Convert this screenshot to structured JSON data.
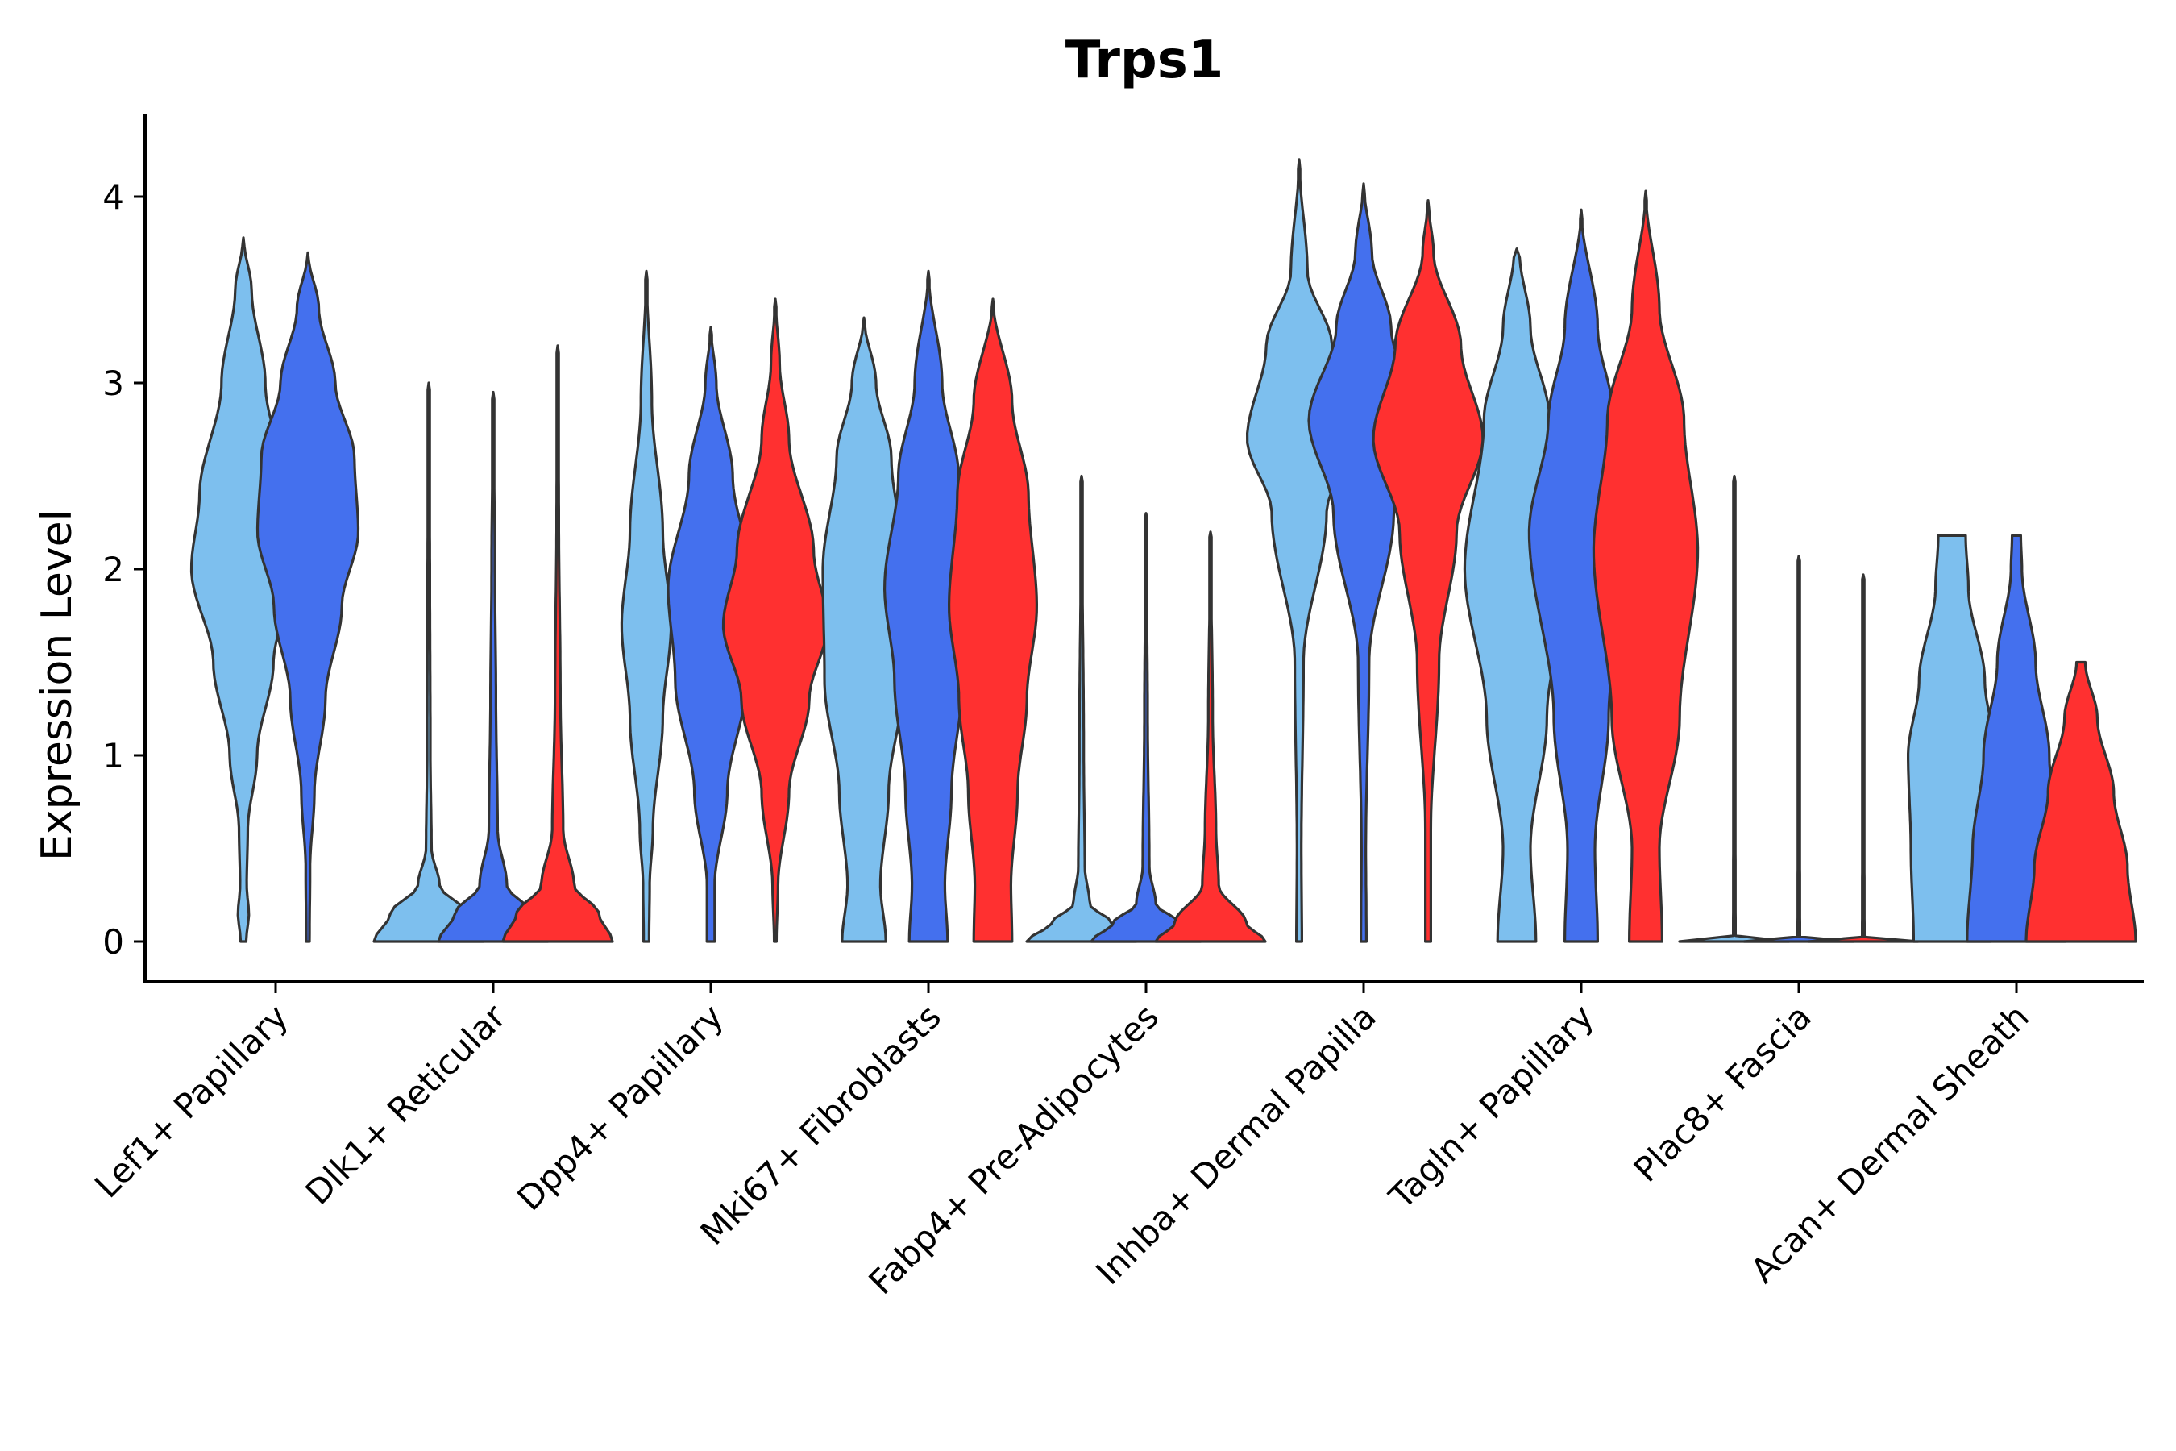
{
  "chart_data": {
    "type": "violin",
    "title": "Trps1",
    "xlabel": "",
    "ylabel": "Expression Level",
    "ylim": [
      -0.2,
      4.45
    ],
    "yticks": [
      "0",
      "1",
      "2",
      "3",
      "4"
    ],
    "categories": [
      "Lef1+ Papillary",
      "Dlk1+ Reticular",
      "Dpp4+ Papillary",
      "Mki67+ Fibroblasts",
      "Fabp4+ Pre-Adipocytes",
      "Inhba+ Dermal Papilla",
      "Tagln+ Papillary",
      "Plac8+ Fascia",
      "Acan+ Dermal Sheath"
    ],
    "series_colors": [
      "#7dbfee",
      "#4470ee",
      "#ff3030"
    ],
    "groups": [
      {
        "category": "Lef1+ Papillary",
        "violins": [
          {
            "series": 0,
            "max": 3.78,
            "min": 0,
            "profile": [
              [
                0,
                0.05
              ],
              [
                0.15,
                0.1
              ],
              [
                0.3,
                0.06
              ],
              [
                0.6,
                0.08
              ],
              [
                1,
                0.25
              ],
              [
                1.5,
                0.55
              ],
              [
                2,
                0.95
              ],
              [
                2.4,
                0.8
              ],
              [
                3,
                0.4
              ],
              [
                3.5,
                0.15
              ],
              [
                3.78,
                0
              ]
            ]
          },
          {
            "series": 1,
            "max": 3.7,
            "min": 0,
            "profile": [
              [
                0,
                0.03
              ],
              [
                0.4,
                0.04
              ],
              [
                0.8,
                0.12
              ],
              [
                1.3,
                0.32
              ],
              [
                1.8,
                0.62
              ],
              [
                2.2,
                0.92
              ],
              [
                2.6,
                0.85
              ],
              [
                3,
                0.5
              ],
              [
                3.4,
                0.2
              ],
              [
                3.7,
                0
              ]
            ]
          }
        ]
      },
      {
        "category": "Dlk1+ Reticular",
        "violins": [
          {
            "series": 0,
            "max": 3.0,
            "min": 0,
            "profile": [
              [
                0,
                1
              ],
              [
                0.15,
                0.7
              ],
              [
                0.3,
                0.2
              ],
              [
                0.5,
                0.05
              ],
              [
                1,
                0.03
              ],
              [
                2,
                0.02
              ],
              [
                3,
                0
              ]
            ]
          },
          {
            "series": 1,
            "max": 2.95,
            "min": 0,
            "profile": [
              [
                0,
                1
              ],
              [
                0.15,
                0.7
              ],
              [
                0.3,
                0.25
              ],
              [
                0.6,
                0.08
              ],
              [
                1.3,
                0.05
              ],
              [
                2,
                0.03
              ],
              [
                2.95,
                0
              ]
            ]
          },
          {
            "series": 2,
            "max": 3.2,
            "min": 0,
            "profile": [
              [
                0,
                1
              ],
              [
                0.15,
                0.75
              ],
              [
                0.3,
                0.3
              ],
              [
                0.6,
                0.1
              ],
              [
                1.3,
                0.05
              ],
              [
                2.3,
                0.02
              ],
              [
                3.2,
                0
              ]
            ]
          }
        ]
      },
      {
        "category": "Dpp4+ Papillary",
        "violins": [
          {
            "series": 0,
            "max": 3.6,
            "min": 0,
            "profile": [
              [
                0,
                0.05
              ],
              [
                0.3,
                0.06
              ],
              [
                0.6,
                0.12
              ],
              [
                1.2,
                0.3
              ],
              [
                1.7,
                0.45
              ],
              [
                2.2,
                0.3
              ],
              [
                2.9,
                0.1
              ],
              [
                3.6,
                0
              ]
            ]
          },
          {
            "series": 1,
            "max": 3.3,
            "min": 0,
            "profile": [
              [
                0,
                0.07
              ],
              [
                0.3,
                0.07
              ],
              [
                0.8,
                0.3
              ],
              [
                1.4,
                0.65
              ],
              [
                1.9,
                0.78
              ],
              [
                2.5,
                0.4
              ],
              [
                3,
                0.1
              ],
              [
                3.3,
                0
              ]
            ]
          },
          {
            "series": 2,
            "max": 3.45,
            "min": 0,
            "profile": [
              [
                0,
                0.02
              ],
              [
                0.3,
                0.05
              ],
              [
                0.8,
                0.25
              ],
              [
                1.3,
                0.62
              ],
              [
                1.7,
                0.95
              ],
              [
                2.1,
                0.7
              ],
              [
                2.7,
                0.25
              ],
              [
                3.1,
                0.08
              ],
              [
                3.45,
                0
              ]
            ]
          }
        ]
      },
      {
        "category": "Mki67+ Fibroblasts",
        "violins": [
          {
            "series": 0,
            "max": 3.35,
            "min": 0,
            "profile": [
              [
                0,
                0.4
              ],
              [
                0.3,
                0.3
              ],
              [
                0.8,
                0.45
              ],
              [
                1.4,
                0.72
              ],
              [
                2,
                0.75
              ],
              [
                2.6,
                0.5
              ],
              [
                3,
                0.22
              ],
              [
                3.35,
                0
              ]
            ]
          },
          {
            "series": 1,
            "max": 3.6,
            "min": 0,
            "profile": [
              [
                0,
                0.35
              ],
              [
                0.3,
                0.3
              ],
              [
                0.8,
                0.42
              ],
              [
                1.4,
                0.62
              ],
              [
                1.9,
                0.8
              ],
              [
                2.5,
                0.55
              ],
              [
                3,
                0.25
              ],
              [
                3.6,
                0
              ]
            ]
          },
          {
            "series": 2,
            "max": 3.45,
            "min": 0,
            "profile": [
              [
                0,
                0.35
              ],
              [
                0.3,
                0.33
              ],
              [
                0.8,
                0.45
              ],
              [
                1.3,
                0.62
              ],
              [
                1.8,
                0.8
              ],
              [
                2.4,
                0.65
              ],
              [
                2.9,
                0.35
              ],
              [
                3.45,
                0
              ]
            ]
          }
        ]
      },
      {
        "category": "Fabp4+ Pre-Adipocytes",
        "violins": [
          {
            "series": 0,
            "max": 2.5,
            "min": 0,
            "profile": [
              [
                0,
                1
              ],
              [
                0.1,
                0.55
              ],
              [
                0.2,
                0.15
              ],
              [
                0.4,
                0.06
              ],
              [
                1,
                0.04
              ],
              [
                2.5,
                0
              ]
            ]
          },
          {
            "series": 1,
            "max": 2.3,
            "min": 0,
            "profile": [
              [
                0,
                1
              ],
              [
                0.1,
                0.6
              ],
              [
                0.2,
                0.18
              ],
              [
                0.4,
                0.06
              ],
              [
                1.2,
                0.03
              ],
              [
                2.3,
                0
              ]
            ]
          },
          {
            "series": 2,
            "max": 2.2,
            "min": 0,
            "profile": [
              [
                0,
                1
              ],
              [
                0.1,
                0.65
              ],
              [
                0.3,
                0.15
              ],
              [
                0.6,
                0.1
              ],
              [
                1.2,
                0.04
              ],
              [
                2.2,
                0
              ]
            ]
          }
        ]
      },
      {
        "category": "Inhba+ Dermal Papilla",
        "violins": [
          {
            "series": 0,
            "max": 4.2,
            "min": 0,
            "profile": [
              [
                0,
                0.05
              ],
              [
                0.5,
                0.04
              ],
              [
                1.5,
                0.08
              ],
              [
                2.3,
                0.5
              ],
              [
                2.7,
                0.95
              ],
              [
                3.2,
                0.6
              ],
              [
                3.6,
                0.15
              ],
              [
                4.2,
                0
              ]
            ]
          },
          {
            "series": 1,
            "max": 4.07,
            "min": 0,
            "profile": [
              [
                0,
                0.05
              ],
              [
                0.5,
                0.04
              ],
              [
                1.5,
                0.1
              ],
              [
                2.3,
                0.55
              ],
              [
                2.8,
                1
              ],
              [
                3.3,
                0.5
              ],
              [
                3.7,
                0.15
              ],
              [
                4.07,
                0
              ]
            ]
          },
          {
            "series": 2,
            "max": 3.98,
            "min": 0,
            "profile": [
              [
                0,
                0.05
              ],
              [
                0.6,
                0.05
              ],
              [
                1.5,
                0.2
              ],
              [
                2.2,
                0.52
              ],
              [
                2.7,
                1
              ],
              [
                3.2,
                0.6
              ],
              [
                3.7,
                0.1
              ],
              [
                3.98,
                0
              ]
            ]
          }
        ]
      },
      {
        "category": "Tagln+ Papillary",
        "violins": [
          {
            "series": 0,
            "max": 3.72,
            "min": 0,
            "profile": [
              [
                0,
                0.35
              ],
              [
                0.5,
                0.25
              ],
              [
                1.2,
                0.55
              ],
              [
                2,
                0.95
              ],
              [
                2.8,
                0.6
              ],
              [
                3.3,
                0.25
              ],
              [
                3.7,
                0.05
              ],
              [
                3.72,
                0
              ]
            ]
          },
          {
            "series": 1,
            "max": 3.93,
            "min": 0,
            "profile": [
              [
                0,
                0.3
              ],
              [
                0.5,
                0.25
              ],
              [
                1.2,
                0.5
              ],
              [
                2.2,
                0.95
              ],
              [
                2.8,
                0.6
              ],
              [
                3.3,
                0.3
              ],
              [
                3.93,
                0
              ]
            ]
          },
          {
            "series": 2,
            "max": 4.03,
            "min": 0,
            "profile": [
              [
                0,
                0.3
              ],
              [
                0.5,
                0.25
              ],
              [
                1.2,
                0.62
              ],
              [
                2.1,
                0.95
              ],
              [
                2.8,
                0.7
              ],
              [
                3.4,
                0.25
              ],
              [
                4.03,
                0
              ]
            ]
          }
        ]
      },
      {
        "category": "Plac8+ Fascia",
        "violins": [
          {
            "series": 0,
            "max": 2.5,
            "min": 0,
            "profile": [
              [
                0,
                1
              ],
              [
                0.02,
                0.02
              ],
              [
                2.5,
                0
              ]
            ]
          },
          {
            "series": 1,
            "max": 2.07,
            "min": 0,
            "profile": [
              [
                0,
                1
              ],
              [
                0.02,
                0.02
              ],
              [
                2.07,
                0
              ]
            ]
          },
          {
            "series": 2,
            "max": 1.97,
            "min": 0,
            "profile": [
              [
                0,
                1
              ],
              [
                0.02,
                0.02
              ],
              [
                1.97,
                0
              ]
            ]
          }
        ]
      },
      {
        "category": "Acan+ Dermal Sheath",
        "violins": [
          {
            "series": 0,
            "max": 2.18,
            "min": 0,
            "profile": [
              [
                0,
                0.7
              ],
              [
                0.5,
                0.75
              ],
              [
                1,
                0.8
              ],
              [
                1.4,
                0.6
              ],
              [
                1.9,
                0.3
              ],
              [
                2.18,
                0.25
              ]
            ]
          },
          {
            "series": 1,
            "max": 2.18,
            "min": 0,
            "profile": [
              [
                0,
                0.9
              ],
              [
                0.5,
                0.8
              ],
              [
                1,
                0.6
              ],
              [
                1.5,
                0.35
              ],
              [
                2,
                0.1
              ],
              [
                2.18,
                0.08
              ]
            ]
          },
          {
            "series": 2,
            "max": 1.5,
            "min": 0,
            "profile": [
              [
                0,
                1
              ],
              [
                0.4,
                0.85
              ],
              [
                0.8,
                0.6
              ],
              [
                1.2,
                0.3
              ],
              [
                1.5,
                0.08
              ]
            ]
          }
        ]
      }
    ]
  }
}
